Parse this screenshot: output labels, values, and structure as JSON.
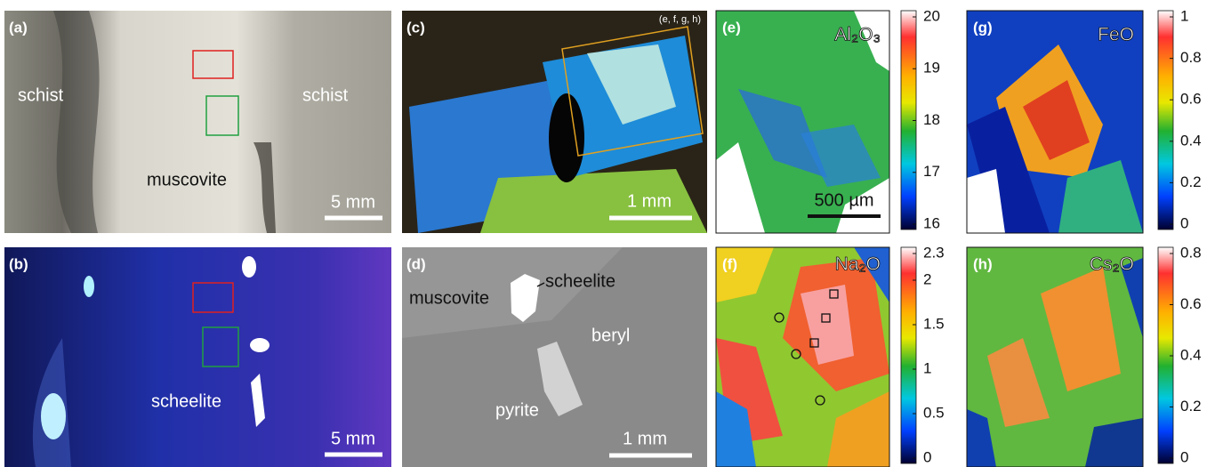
{
  "panels": {
    "a": {
      "label": "(a)",
      "texts": [
        "schist",
        "schist",
        "muscovite"
      ],
      "scale_bar": "5 mm"
    },
    "b": {
      "label": "(b)",
      "texts": [
        "scheelite"
      ],
      "scale_bar": "5 mm"
    },
    "c": {
      "label": "(c)",
      "inset_note": "(e, f, g, h)",
      "scale_bar": "1 mm"
    },
    "d": {
      "label": "(d)",
      "texts": [
        "muscovite",
        "scheelite",
        "beryl",
        "pyrite"
      ],
      "scale_bar": "1 mm"
    },
    "e": {
      "label": "(e)",
      "oxide": "Al₂O₃",
      "scale_bar": "500 µm",
      "colorbar_ticks": [
        20,
        19,
        18,
        17,
        16
      ]
    },
    "g": {
      "label": "(g)",
      "oxide": "FeO",
      "colorbar_ticks": [
        1,
        0.8,
        0.6,
        0.4,
        0.2,
        0
      ]
    },
    "f": {
      "label": "(f)",
      "oxide": "Na₂O",
      "colorbar_ticks": [
        2.3,
        2,
        1.5,
        1,
        0.5,
        0
      ]
    },
    "h": {
      "label": "(h)",
      "oxide": "Cs₂O",
      "colorbar_ticks": [
        0.8,
        0.6,
        0.4,
        0.2,
        0
      ]
    }
  }
}
